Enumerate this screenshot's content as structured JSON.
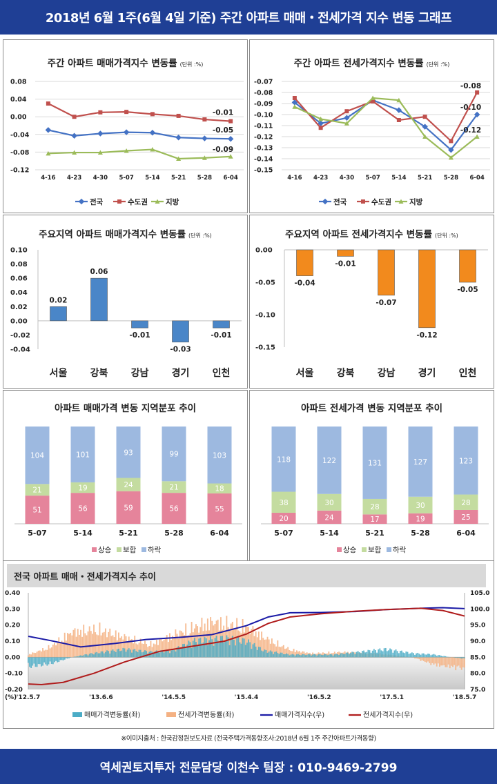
{
  "header": {
    "title": "2018년 6월 1주(6월 4일 기준) 주간 아파트 매매・전세가격 지수 변동 그래프"
  },
  "footer": {
    "source": "※이미지출처 : 한국감정원보도자료 (전국주택가격동향조사:2018년 6월 1주 주간아파트가격동향)",
    "contact": "역세권토지투자 전문담당 이천수 팀장 : 010-9469-2799"
  },
  "colors": {
    "national": "#4472c4",
    "capital": "#c0504d",
    "local": "#9bbb59",
    "rise": "#e5849b",
    "flat": "#c4dca0",
    "fall": "#9db9e0",
    "banner": "#1f3f95"
  },
  "chart_data": [
    {
      "id": "weekly-sale",
      "type": "line",
      "title": "주간 아파트 매매가격지수 변동률",
      "unit": "(단위 :%)",
      "categories": [
        "4-16",
        "4-23",
        "4-30",
        "5-07",
        "5-14",
        "5-21",
        "5-28",
        "6-04"
      ],
      "yticks": [
        "0.08",
        "0.04",
        "0.00",
        "-0.04",
        "-0.08",
        "-0.12"
      ],
      "ylim": [
        -0.12,
        0.08
      ],
      "series": [
        {
          "name": "전국",
          "color": "#4472c4",
          "values": [
            -0.03,
            -0.043,
            -0.038,
            -0.035,
            -0.036,
            -0.047,
            -0.049,
            -0.05
          ],
          "last_label": "-0.05"
        },
        {
          "name": "수도권",
          "color": "#c0504d",
          "values": [
            0.03,
            0.0,
            0.01,
            0.011,
            0.006,
            0.002,
            -0.006,
            -0.01
          ],
          "last_label": "-0.01"
        },
        {
          "name": "지방",
          "color": "#9bbb59",
          "values": [
            -0.083,
            -0.081,
            -0.081,
            -0.077,
            -0.074,
            -0.095,
            -0.093,
            -0.09
          ],
          "last_label": "-0.09"
        }
      ]
    },
    {
      "id": "weekly-jeonse",
      "type": "line",
      "title": "주간 아파트 전세가격지수 변동률",
      "unit": "(단위 :%)",
      "categories": [
        "4-16",
        "4-23",
        "4-30",
        "5-07",
        "5-14",
        "5-21",
        "5-28",
        "6-04"
      ],
      "yticks": [
        "-0.07",
        "-0.08",
        "-0.09",
        "-0.10",
        "-0.11",
        "-0.12",
        "-0.13",
        "-0.14",
        "-0.15"
      ],
      "ylim": [
        -0.15,
        -0.07
      ],
      "series": [
        {
          "name": "전국",
          "color": "#4472c4",
          "values": [
            -0.089,
            -0.108,
            -0.103,
            -0.087,
            -0.096,
            -0.111,
            -0.132,
            -0.1
          ],
          "last_label": "-0.10"
        },
        {
          "name": "수도권",
          "color": "#c0504d",
          "values": [
            -0.085,
            -0.112,
            -0.097,
            -0.088,
            -0.105,
            -0.102,
            -0.124,
            -0.08
          ],
          "last_label": "-0.08"
        },
        {
          "name": "지방",
          "color": "#9bbb59",
          "values": [
            -0.093,
            -0.104,
            -0.108,
            -0.085,
            -0.087,
            -0.12,
            -0.139,
            -0.12
          ],
          "last_label": "-0.12"
        }
      ]
    },
    {
      "id": "region-sale",
      "type": "bar",
      "title": "주요지역 아파트 매매가격지수 변동률",
      "unit": "(단위 :%)",
      "categories": [
        "서울",
        "강북",
        "강남",
        "경기",
        "인천"
      ],
      "values": [
        0.02,
        0.06,
        -0.01,
        -0.03,
        -0.01
      ],
      "labels": [
        "0.02",
        "0.06",
        "-0.01",
        "-0.03",
        "-0.01"
      ],
      "yticks": [
        "0.10",
        "0.08",
        "0.06",
        "0.04",
        "0.02",
        "0.00",
        "-0.02",
        "-0.04"
      ],
      "ylim": [
        -0.04,
        0.1
      ],
      "color": "#4a86c8"
    },
    {
      "id": "region-jeonse",
      "type": "bar",
      "title": "주요지역 아파트 전세가격지수 변동률",
      "unit": "(단위 :%)",
      "categories": [
        "서울",
        "강북",
        "강남",
        "경기",
        "인천"
      ],
      "values": [
        -0.04,
        -0.01,
        -0.07,
        -0.12,
        -0.05
      ],
      "labels": [
        "-0.04",
        "-0.01",
        "-0.07",
        "-0.12",
        "-0.05"
      ],
      "yticks": [
        "0.00",
        "-0.05",
        "-0.10",
        "-0.15"
      ],
      "ylim": [
        -0.15,
        0.0
      ],
      "color": "#f28a1d"
    },
    {
      "id": "dist-sale",
      "type": "bar",
      "stacked": true,
      "title": "아파트 매매가격 변동 지역분포 추이",
      "categories": [
        "5-07",
        "5-14",
        "5-21",
        "5-28",
        "6-04"
      ],
      "series": [
        {
          "name": "상승",
          "color": "#e5849b",
          "values": [
            51,
            56,
            59,
            56,
            55
          ]
        },
        {
          "name": "보합",
          "color": "#c4dca0",
          "values": [
            21,
            19,
            24,
            21,
            18
          ]
        },
        {
          "name": "하락",
          "color": "#9db9e0",
          "values": [
            104,
            101,
            93,
            99,
            103
          ]
        }
      ]
    },
    {
      "id": "dist-jeonse",
      "type": "bar",
      "stacked": true,
      "title": "아파트 전세가격 변동 지역분포 추이",
      "categories": [
        "5-07",
        "5-14",
        "5-21",
        "5-28",
        "6-04"
      ],
      "series": [
        {
          "name": "상승",
          "color": "#e5849b",
          "values": [
            20,
            24,
            17,
            19,
            25
          ]
        },
        {
          "name": "보합",
          "color": "#c4dca0",
          "values": [
            38,
            30,
            28,
            30,
            28
          ]
        },
        {
          "name": "하락",
          "color": "#9db9e0",
          "values": [
            118,
            122,
            131,
            127,
            123
          ]
        }
      ]
    },
    {
      "id": "long-trend",
      "type": "line",
      "title": "전국 아파트 매매・전세가격지수 추이",
      "left_unit": "(%)",
      "left_ticks": [
        "0.40",
        "0.30",
        "0.20",
        "0.10",
        "0.00",
        "-0.10",
        "-0.20"
      ],
      "left_ylim": [
        -0.2,
        0.4
      ],
      "right_ticks": [
        "105.0",
        "100.0",
        "95.0",
        "90.0",
        "85.0",
        "80.0",
        "75.0"
      ],
      "right_ylim": [
        75,
        105
      ],
      "x_ticks": [
        "'12.5.7",
        "'13.6.6",
        "'14.5.5",
        "'15.4.4",
        "'16.5.2",
        "'17.5.1",
        "'18.5.7"
      ],
      "legend": [
        "매매가격변동률(좌)",
        "전세가격변동률(좌)",
        "매매가격지수(우)",
        "전세가격지수(우)"
      ],
      "series": [
        {
          "name": "매매가격지수(우)",
          "color": "#1a1aa6",
          "x": [
            0,
            0.05,
            0.12,
            0.2,
            0.27,
            0.35,
            0.42,
            0.5,
            0.55,
            0.6,
            0.67,
            0.75,
            0.82,
            0.9,
            0.95,
            1.0
          ],
          "values": [
            91.5,
            90.2,
            88.2,
            89.3,
            90.5,
            91.2,
            92.0,
            94.8,
            97.5,
            98.8,
            98.9,
            99.2,
            99.8,
            100.2,
            100.4,
            100.1
          ]
        },
        {
          "name": "전세가격지수(우)",
          "color": "#b01c1c",
          "x": [
            0,
            0.03,
            0.08,
            0.15,
            0.22,
            0.3,
            0.38,
            0.45,
            0.5,
            0.55,
            0.6,
            0.67,
            0.75,
            0.82,
            0.9,
            0.95,
            1.0
          ],
          "values": [
            76.7,
            76.5,
            77.2,
            80.0,
            83.5,
            86.8,
            88.5,
            90.0,
            92.2,
            95.5,
            97.5,
            98.5,
            99.3,
            99.8,
            100.2,
            99.5,
            97.8
          ]
        }
      ]
    }
  ]
}
